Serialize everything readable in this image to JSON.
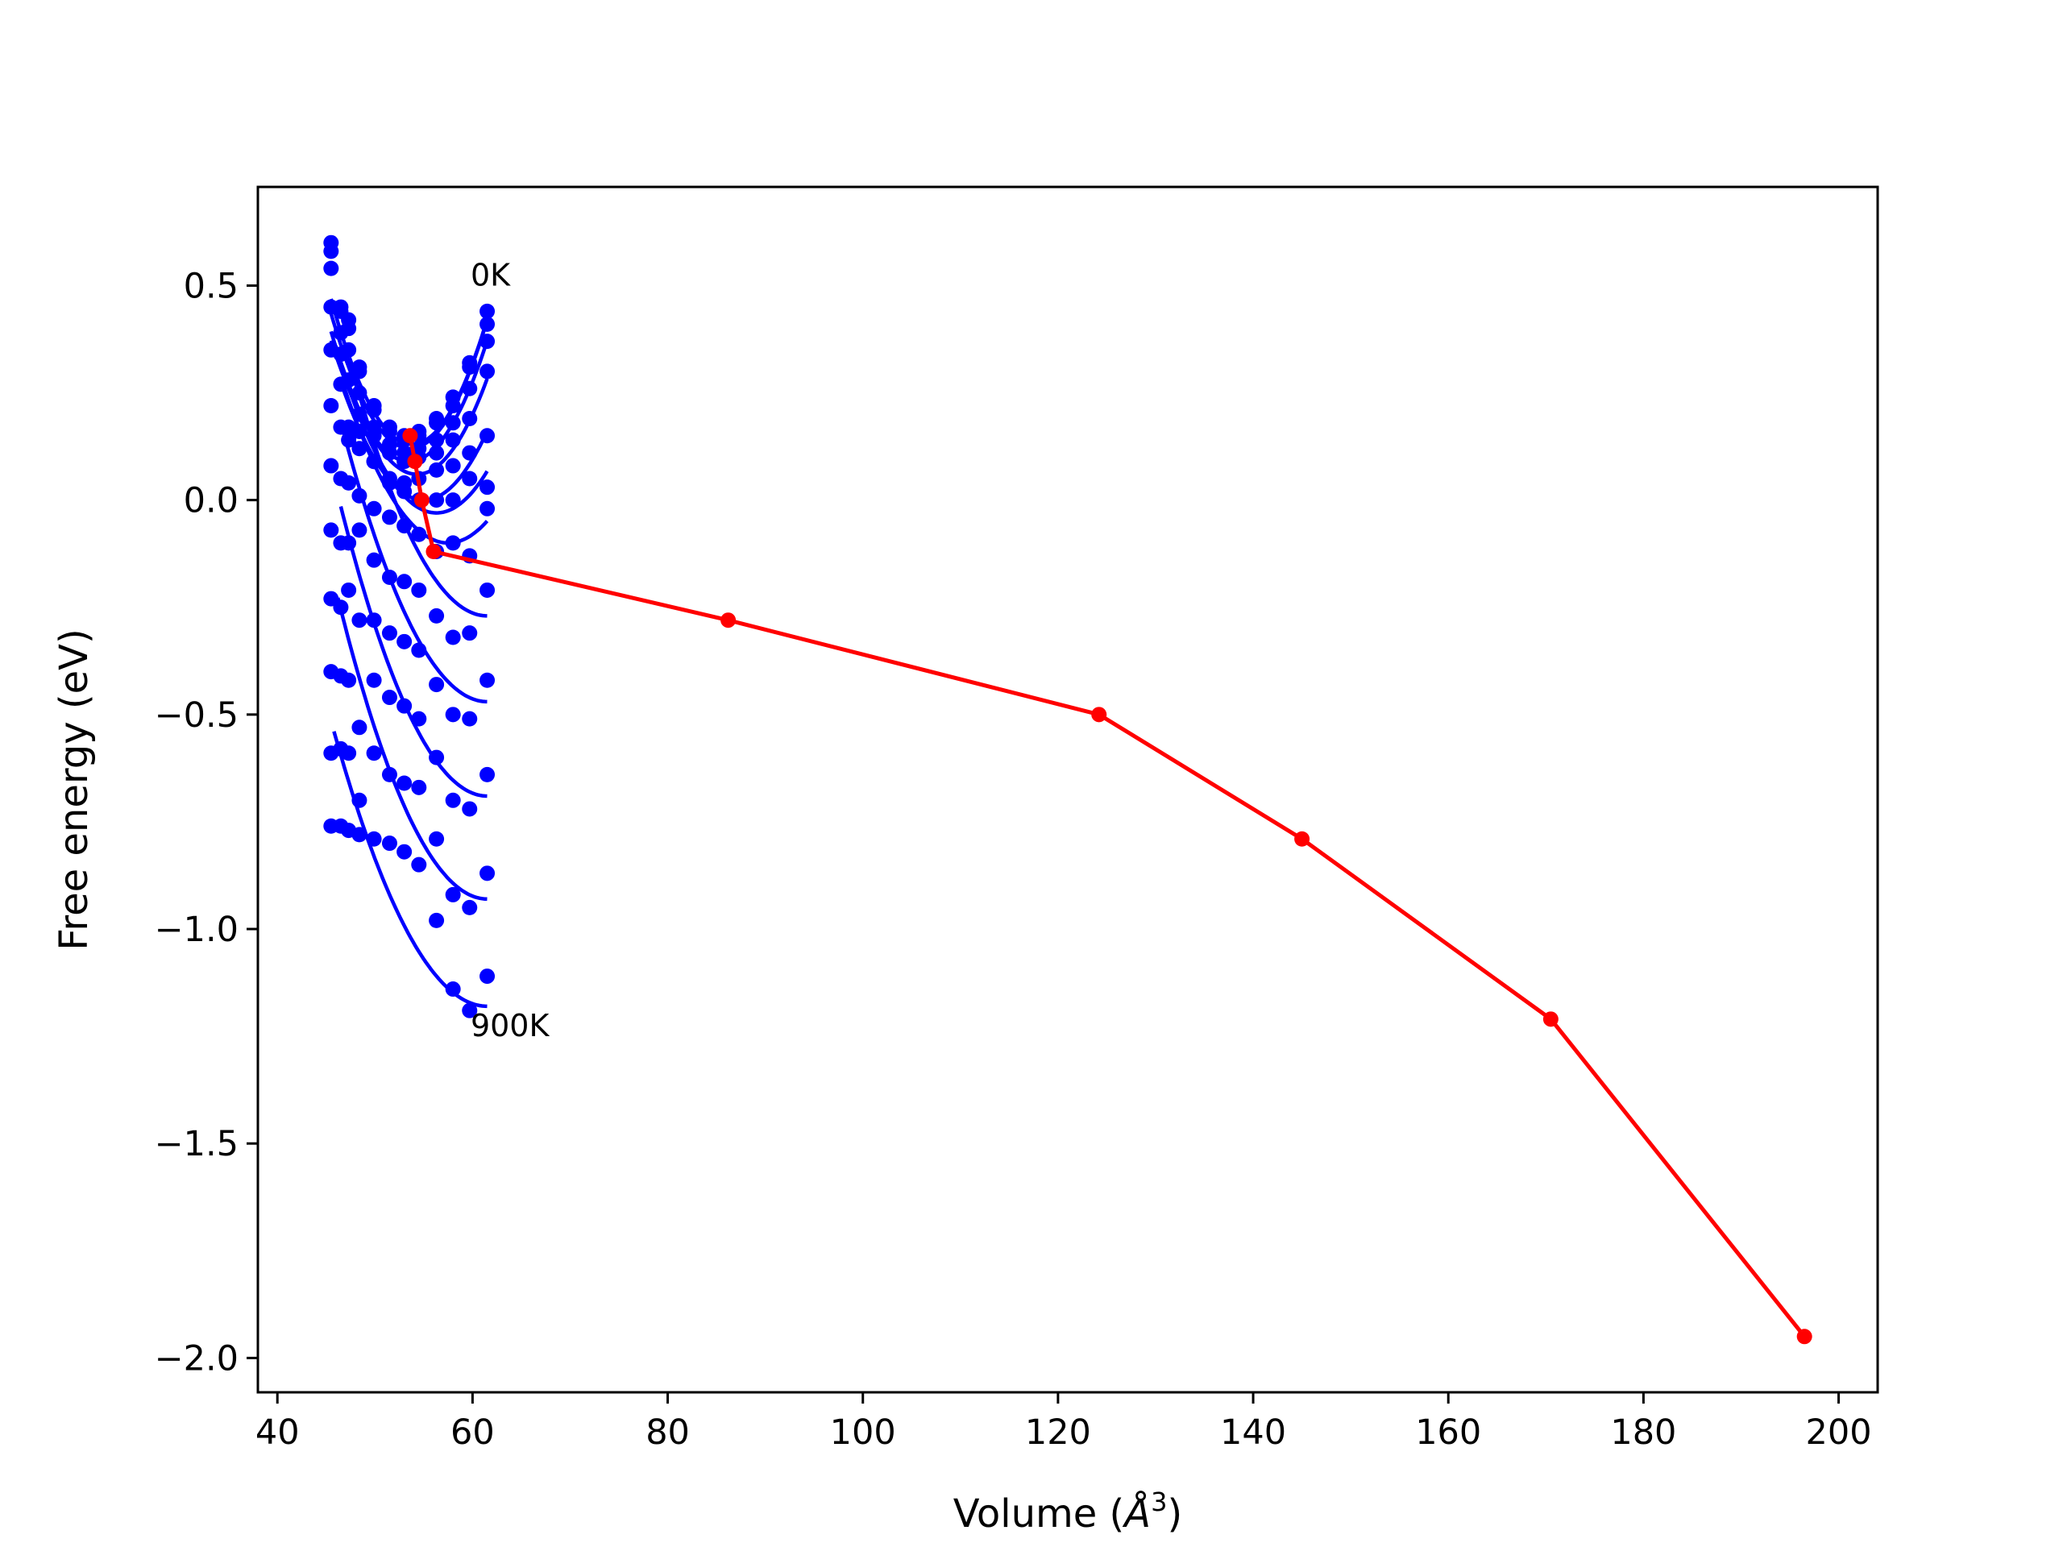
{
  "chart_data": {
    "type": "line",
    "title": "",
    "xlabel": "Volume (",
    "xlabel_symbol": "Å",
    "xlabel_exponent": "3",
    "xlabel_close": ")",
    "ylabel": "Free energy (eV)",
    "xlim": [
      38,
      204
    ],
    "ylim": [
      -2.08,
      0.73
    ],
    "xticks": [
      40,
      60,
      80,
      100,
      120,
      140,
      160,
      180,
      200
    ],
    "yticks": [
      0.5,
      0.0,
      -0.5,
      -1.0,
      -1.5,
      -2.0
    ],
    "xtick_labels": [
      "40",
      "60",
      "80",
      "100",
      "120",
      "140",
      "160",
      "180",
      "200"
    ],
    "ytick_labels": [
      "0.5",
      "0.0",
      "−0.5",
      "−1.0",
      "−1.5",
      "−2.0"
    ],
    "grid": false,
    "legend": "none",
    "annotations": [
      {
        "text": "0K",
        "x": 59.8,
        "y": 0.5
      },
      {
        "text": "900K",
        "x": 59.8,
        "y": -1.25
      }
    ],
    "isotherm_volumes": [
      45.5,
      46.5,
      47.3,
      48.4,
      49.9,
      51.5,
      53.0,
      54.5,
      56.3,
      58.0,
      59.7,
      61.5
    ],
    "isotherms": [
      {
        "values": [
          0.6,
          0.45,
          0.42,
          0.31,
          0.22,
          0.17,
          0.15,
          0.16,
          0.19,
          0.24,
          0.32,
          0.44
        ],
        "fit": {
          "vmin": 45.5,
          "vmax": 61.5,
          "v0": 53.8,
          "a": 0.00492,
          "c": 0.13
        }
      },
      {
        "values": [
          0.58,
          0.44,
          0.4,
          0.3,
          0.21,
          0.16,
          0.14,
          0.15,
          0.18,
          0.22,
          0.31,
          0.41
        ],
        "fit": {
          "vmin": 45.5,
          "vmax": 61.5,
          "v0": 53.6,
          "a": 0.0048,
          "c": 0.12
        }
      },
      {
        "values": [
          0.54,
          0.39,
          0.35,
          0.25,
          0.17,
          0.13,
          0.11,
          0.12,
          0.14,
          0.18,
          0.26,
          0.37
        ],
        "fit": {
          "vmin": 45.5,
          "vmax": 61.5,
          "v0": 53.5,
          "a": 0.0044,
          "c": 0.09
        }
      },
      {
        "values": [
          0.45,
          0.34,
          0.28,
          0.2,
          0.15,
          0.11,
          0.09,
          0.1,
          0.11,
          0.14,
          0.19,
          0.3
        ],
        "fit": {
          "vmin": 45.5,
          "vmax": 61.5,
          "v0": 54.3,
          "a": 0.0043,
          "c": 0.06
        }
      },
      {
        "values": [
          0.35,
          0.27,
          0.17,
          0.16,
          0.09,
          0.05,
          0.04,
          0.05,
          0.07,
          0.08,
          0.11,
          0.15
        ],
        "fit": {
          "vmin": 46.5,
          "vmax": 61.5,
          "v0": 55.0,
          "a": 0.0038,
          "c": 0.0
        }
      },
      {
        "values": [
          0.22,
          0.17,
          0.14,
          0.12,
          0.09,
          0.04,
          0.02,
          0.0,
          0.0,
          0.0,
          0.05,
          0.03
        ],
        "fit": {
          "vmin": 46.5,
          "vmax": 61.5,
          "v0": 56.3,
          "a": 0.0036,
          "c": -0.03
        }
      },
      {
        "values": [
          0.08,
          0.05,
          0.04,
          0.01,
          -0.02,
          -0.04,
          -0.06,
          -0.08,
          -0.12,
          -0.1,
          -0.13,
          -0.02
        ],
        "fit": {
          "vmin": 46.5,
          "vmax": 61.5,
          "v0": 57.5,
          "a": 0.0032,
          "c": -0.1
        }
      },
      {
        "values": [
          -0.07,
          -0.1,
          -0.1,
          -0.07,
          -0.14,
          -0.18,
          -0.19,
          -0.21,
          -0.27,
          -0.32,
          -0.31,
          -0.21
        ],
        "fit": {
          "vmin": 47.0,
          "vmax": 61.5,
          "v0": 61.5,
          "a": 0.003,
          "c": -0.27
        }
      },
      {
        "values": [
          -0.23,
          -0.25,
          -0.21,
          -0.28,
          -0.28,
          -0.31,
          -0.33,
          -0.35,
          -0.43,
          -0.5,
          -0.51,
          -0.42
        ],
        "fit": {
          "vmin": 46.8,
          "vmax": 61.5,
          "v0": 61.5,
          "a": 0.0029,
          "c": -0.47
        }
      },
      {
        "values": [
          -0.4,
          -0.41,
          -0.42,
          -0.53,
          -0.42,
          -0.46,
          -0.48,
          -0.51,
          -0.6,
          -0.7,
          -0.72,
          -0.64
        ],
        "fit": {
          "vmin": 46.5,
          "vmax": 61.5,
          "v0": 61.5,
          "a": 0.003,
          "c": -0.69
        }
      },
      {
        "values": [
          -0.59,
          -0.58,
          -0.59,
          -0.7,
          -0.59,
          -0.64,
          -0.66,
          -0.67,
          -0.79,
          -0.92,
          -0.95,
          -0.87
        ],
        "fit": {
          "vmin": 46.2,
          "vmax": 61.5,
          "v0": 61.5,
          "a": 0.003,
          "c": -0.93
        }
      },
      {
        "values": [
          -0.76,
          -0.76,
          -0.77,
          -0.78,
          -0.79,
          -0.8,
          -0.82,
          -0.85,
          -0.98,
          -1.14,
          -1.19,
          -1.11
        ],
        "fit": {
          "vmin": 45.8,
          "vmax": 61.5,
          "v0": 61.5,
          "a": 0.0026,
          "c": -1.18
        }
      }
    ],
    "series": [
      {
        "x": [
          53.6,
          54.1,
          54.8,
          56.0,
          86.2,
          124.2,
          145.0,
          170.5,
          196.5
        ],
        "y": [
          0.15,
          0.09,
          0.0,
          -0.12,
          -0.28,
          -0.5,
          -0.79,
          -1.21,
          -1.95
        ]
      }
    ],
    "colors": {
      "isotherm": "#0000ff",
      "equilibrium": "#ff0000",
      "axes": "#000000"
    }
  }
}
